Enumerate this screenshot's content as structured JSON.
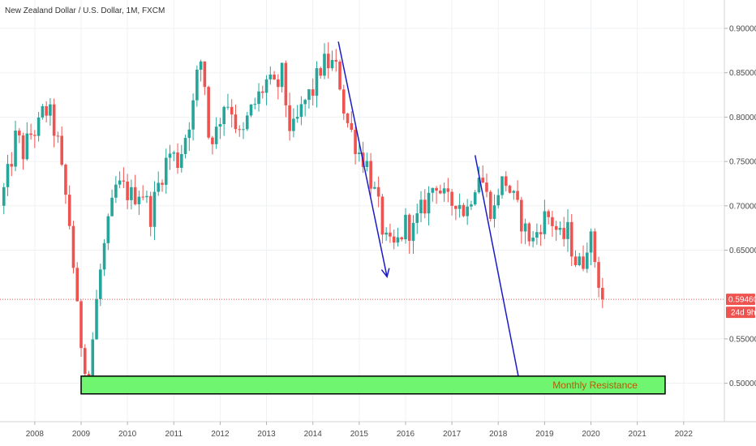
{
  "header": {
    "title": "New Zealand Dollar / U.S. Dollar, 1M, FXCM"
  },
  "chart_data": {
    "type": "candlestick",
    "title": "New Zealand Dollar / U.S. Dollar, 1M, FXCM",
    "xlabel": "",
    "ylabel": "",
    "x_ticks": [
      "2008",
      "2009",
      "2010",
      "2011",
      "2012",
      "2013",
      "2014",
      "2015",
      "2016",
      "2017",
      "2018",
      "2019",
      "2020",
      "2021",
      "2022"
    ],
    "y_ticks": [
      "0.90000",
      "0.85000",
      "0.80000",
      "0.75000",
      "0.70000",
      "0.65000",
      "0.55000",
      "0.50000"
    ],
    "ylim": [
      0.45,
      0.93
    ],
    "xlim": [
      2007.25,
      2022.6
    ],
    "grid": true,
    "colors": {
      "up": "#26a69a",
      "down": "#ef5350",
      "arrow": "#1a1acc",
      "zone": "#6ff56f",
      "tag": "#ef5350",
      "last_line": "#ef5350"
    },
    "last_price": {
      "value": 0.5946,
      "label": "0.59460",
      "countdown": "24d 9h"
    },
    "close_path": [
      [
        2007.25,
        0.7
      ],
      [
        2007.45,
        0.74
      ],
      [
        2007.6,
        0.78
      ],
      [
        2007.75,
        0.76
      ],
      [
        2007.9,
        0.78
      ],
      [
        2008.1,
        0.79
      ],
      [
        2008.2,
        0.81
      ],
      [
        2008.35,
        0.8
      ],
      [
        2008.5,
        0.77
      ],
      [
        2008.6,
        0.73
      ],
      [
        2008.7,
        0.7
      ],
      [
        2008.8,
        0.66
      ],
      [
        2008.85,
        0.62
      ],
      [
        2008.95,
        0.56
      ],
      [
        2009.1,
        0.52
      ],
      [
        2009.15,
        0.5
      ],
      [
        2009.2,
        0.51
      ],
      [
        2009.25,
        0.55
      ],
      [
        2009.35,
        0.6
      ],
      [
        2009.45,
        0.64
      ],
      [
        2009.6,
        0.68
      ],
      [
        2009.75,
        0.72
      ],
      [
        2009.9,
        0.72
      ],
      [
        2010.1,
        0.71
      ],
      [
        2010.3,
        0.72
      ],
      [
        2010.5,
        0.69
      ],
      [
        2010.7,
        0.73
      ],
      [
        2010.9,
        0.76
      ],
      [
        2011.1,
        0.75
      ],
      [
        2011.3,
        0.79
      ],
      [
        2011.45,
        0.82
      ],
      [
        2011.55,
        0.87
      ],
      [
        2011.65,
        0.85
      ],
      [
        2011.75,
        0.78
      ],
      [
        2011.9,
        0.78
      ],
      [
        2012.1,
        0.82
      ],
      [
        2012.25,
        0.81
      ],
      [
        2012.45,
        0.77
      ],
      [
        2012.6,
        0.8
      ],
      [
        2012.8,
        0.82
      ],
      [
        2013.0,
        0.84
      ],
      [
        2013.2,
        0.83
      ],
      [
        2013.35,
        0.85
      ],
      [
        2013.45,
        0.8
      ],
      [
        2013.55,
        0.78
      ],
      [
        2013.7,
        0.8
      ],
      [
        2013.85,
        0.82
      ],
      [
        2014.0,
        0.83
      ],
      [
        2014.2,
        0.86
      ],
      [
        2014.4,
        0.86
      ],
      [
        2014.55,
        0.85
      ],
      [
        2014.7,
        0.8
      ],
      [
        2014.85,
        0.78
      ],
      [
        2015.0,
        0.76
      ],
      [
        2015.15,
        0.75
      ],
      [
        2015.3,
        0.72
      ],
      [
        2015.45,
        0.69
      ],
      [
        2015.55,
        0.66
      ],
      [
        2015.7,
        0.65
      ],
      [
        2015.85,
        0.66
      ],
      [
        2016.0,
        0.68
      ],
      [
        2016.15,
        0.67
      ],
      [
        2016.3,
        0.69
      ],
      [
        2016.5,
        0.71
      ],
      [
        2016.65,
        0.73
      ],
      [
        2016.8,
        0.71
      ],
      [
        2016.95,
        0.7
      ],
      [
        2017.1,
        0.71
      ],
      [
        2017.3,
        0.69
      ],
      [
        2017.45,
        0.72
      ],
      [
        2017.6,
        0.74
      ],
      [
        2017.75,
        0.71
      ],
      [
        2017.9,
        0.69
      ],
      [
        2018.0,
        0.72
      ],
      [
        2018.15,
        0.73
      ],
      [
        2018.3,
        0.71
      ],
      [
        2018.45,
        0.69
      ],
      [
        2018.6,
        0.67
      ],
      [
        2018.75,
        0.66
      ],
      [
        2018.9,
        0.68
      ],
      [
        2019.05,
        0.69
      ],
      [
        2019.2,
        0.68
      ],
      [
        2019.35,
        0.66
      ],
      [
        2019.5,
        0.67
      ],
      [
        2019.65,
        0.64
      ],
      [
        2019.8,
        0.63
      ],
      [
        2019.95,
        0.67
      ],
      [
        2020.05,
        0.65
      ],
      [
        2020.15,
        0.62
      ],
      [
        2020.25,
        0.5946
      ]
    ],
    "annotations": [
      {
        "type": "arrow",
        "from": [
          2014.55,
          0.885
        ],
        "to": [
          2015.6,
          0.62
        ]
      },
      {
        "type": "arrow",
        "from": [
          2017.5,
          0.757
        ],
        "to": [
          2018.5,
          0.49
        ]
      },
      {
        "type": "zone",
        "label": "Monthly Resistance",
        "x": [
          2009.0,
          2021.6
        ],
        "y": [
          0.488,
          0.508
        ]
      }
    ]
  }
}
